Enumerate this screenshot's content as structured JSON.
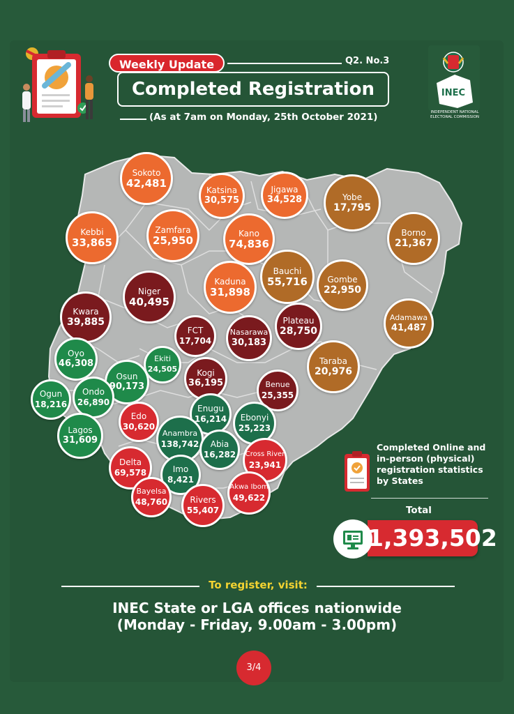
{
  "header": {
    "badge": "Weekly Update",
    "issue": "Q2. No.3",
    "title": "Completed Registration",
    "subtitle": "(As at 7am on Monday, 25th October 2021)"
  },
  "logo": {
    "short": "INEC",
    "full": "INDEPENDENT NATIONAL ELECTORAL COMMISSION"
  },
  "colors": {
    "background": "#275a3a",
    "orange": "#ec6a2f",
    "brown": "#b06b27",
    "maroon": "#7a1a1e",
    "green": "#1f8a4a",
    "dark_green": "#1d6f4b",
    "red": "#d72a30",
    "map_gray": "#b5b7b6",
    "footer_label": "#f3d331"
  },
  "states": [
    {
      "name": "Sokoto",
      "value": "42,481",
      "color": "orange"
    },
    {
      "name": "Katsina",
      "value": "30,575",
      "color": "orange"
    },
    {
      "name": "Jigawa",
      "value": "34,528",
      "color": "orange"
    },
    {
      "name": "Yobe",
      "value": "17,795",
      "color": "brown"
    },
    {
      "name": "Kebbi",
      "value": "33,865",
      "color": "orange"
    },
    {
      "name": "Zamfara",
      "value": "25,950",
      "color": "orange"
    },
    {
      "name": "Kano",
      "value": "74,836",
      "color": "orange"
    },
    {
      "name": "Borno",
      "value": "21,367",
      "color": "brown"
    },
    {
      "name": "Bauchi",
      "value": "55,716",
      "color": "brown"
    },
    {
      "name": "Gombe",
      "value": "22,950",
      "color": "brown"
    },
    {
      "name": "Kaduna",
      "value": "31,898",
      "color": "orange"
    },
    {
      "name": "Niger",
      "value": "40,495",
      "color": "maroon"
    },
    {
      "name": "Kwara",
      "value": "39,885",
      "color": "maroon"
    },
    {
      "name": "Adamawa",
      "value": "41,487",
      "color": "brown"
    },
    {
      "name": "Plateau",
      "value": "28,750",
      "color": "maroon"
    },
    {
      "name": "FCT",
      "value": "17,704",
      "color": "maroon"
    },
    {
      "name": "Nasarawa",
      "value": "30,183",
      "color": "maroon"
    },
    {
      "name": "Taraba",
      "value": "20,976",
      "color": "brown"
    },
    {
      "name": "Oyo",
      "value": "46,308",
      "color": "green"
    },
    {
      "name": "Ekiti",
      "value": "24,505",
      "color": "green"
    },
    {
      "name": "Osun",
      "value": "90,173",
      "color": "green"
    },
    {
      "name": "Kogi",
      "value": "36,195",
      "color": "maroon"
    },
    {
      "name": "Benue",
      "value": "25,355",
      "color": "maroon"
    },
    {
      "name": "Ogun",
      "value": "18,216",
      "color": "green"
    },
    {
      "name": "Ondo",
      "value": "26,890",
      "color": "green"
    },
    {
      "name": "Enugu",
      "value": "16,214",
      "color": "dkgreen"
    },
    {
      "name": "Ebonyi",
      "value": "25,223",
      "color": "dkgreen"
    },
    {
      "name": "Edo",
      "value": "30,620",
      "color": "red"
    },
    {
      "name": "Lagos",
      "value": "31,609",
      "color": "green"
    },
    {
      "name": "Anambra",
      "value": "138,742",
      "color": "dkgreen"
    },
    {
      "name": "Abia",
      "value": "16,282",
      "color": "dkgreen"
    },
    {
      "name": "Cross River",
      "value": "23,941",
      "color": "red"
    },
    {
      "name": "Delta",
      "value": "69,578",
      "color": "red"
    },
    {
      "name": "Imo",
      "value": "8,421",
      "color": "dkgreen"
    },
    {
      "name": "Bayelsa",
      "value": "48,760",
      "color": "red"
    },
    {
      "name": "Rivers",
      "value": "55,407",
      "color": "red"
    },
    {
      "name": "Akwa Ibom",
      "value": "49,622",
      "color": "red"
    }
  ],
  "legend": {
    "text": "Completed Online and in-person (physical) registration statistics by States"
  },
  "total": {
    "label": "Total",
    "value": "1,393,502"
  },
  "footer": {
    "label": "To register, visit:",
    "line1": "INEC State or LGA offices nationwide",
    "line2": "(Monday - Friday, 9.00am - 3.00pm)"
  },
  "page": "3/4"
}
